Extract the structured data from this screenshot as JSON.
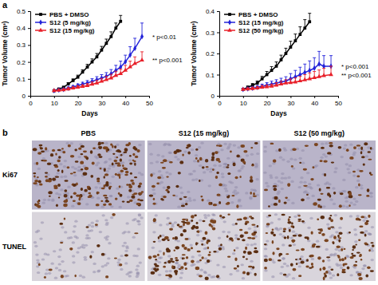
{
  "chart_data": [
    {
      "type": "line",
      "panel_label": "a",
      "x_label": "Days",
      "y_label": "Tumor Volume (cm³)",
      "xlim": [
        0,
        50
      ],
      "xticks": [
        0,
        10,
        20,
        30,
        40,
        50
      ],
      "ylim": [
        0,
        0.5
      ],
      "yticks": [
        0,
        0.1,
        0.2,
        0.3,
        0.4,
        0.5
      ],
      "legend": "upper left",
      "annotations": [
        "* p<0.01",
        "** p<0.001"
      ],
      "series": [
        {
          "name": "PBS + DMSO",
          "color": "#000000",
          "marker": "square",
          "x": [
            10,
            12,
            14,
            16,
            18,
            20,
            22,
            24,
            26,
            28,
            30,
            32,
            34,
            36,
            38
          ],
          "values": [
            0.03,
            0.04,
            0.05,
            0.07,
            0.09,
            0.11,
            0.14,
            0.17,
            0.2,
            0.23,
            0.27,
            0.31,
            0.35,
            0.4,
            0.44
          ],
          "errors": [
            0.004,
            0.005,
            0.006,
            0.008,
            0.01,
            0.012,
            0.014,
            0.016,
            0.018,
            0.02,
            0.022,
            0.025,
            0.028,
            0.03,
            0.035
          ]
        },
        {
          "name": "S12 (5 mg/kg)",
          "color": "#2323d9",
          "marker": "diamond",
          "x": [
            10,
            12,
            14,
            16,
            18,
            20,
            22,
            24,
            26,
            28,
            30,
            32,
            34,
            36,
            38,
            40,
            42,
            44,
            47
          ],
          "values": [
            0.03,
            0.034,
            0.038,
            0.045,
            0.052,
            0.06,
            0.068,
            0.076,
            0.085,
            0.095,
            0.105,
            0.115,
            0.13,
            0.15,
            0.17,
            0.2,
            0.24,
            0.28,
            0.35
          ],
          "errors": [
            0.004,
            0.005,
            0.006,
            0.007,
            0.008,
            0.01,
            0.012,
            0.014,
            0.016,
            0.018,
            0.02,
            0.022,
            0.025,
            0.03,
            0.035,
            0.04,
            0.05,
            0.06,
            0.08
          ]
        },
        {
          "name": "S12 (15 mg/kg)",
          "color": "#e8202a",
          "marker": "triangle",
          "x": [
            10,
            12,
            14,
            16,
            18,
            20,
            22,
            24,
            26,
            28,
            30,
            32,
            34,
            36,
            38,
            40,
            42,
            44,
            47
          ],
          "values": [
            0.03,
            0.032,
            0.035,
            0.04,
            0.045,
            0.05,
            0.055,
            0.06,
            0.068,
            0.075,
            0.085,
            0.095,
            0.105,
            0.12,
            0.13,
            0.15,
            0.17,
            0.19,
            0.21
          ],
          "errors": [
            0.004,
            0.005,
            0.006,
            0.007,
            0.008,
            0.009,
            0.01,
            0.012,
            0.014,
            0.016,
            0.018,
            0.02,
            0.022,
            0.025,
            0.028,
            0.03,
            0.035,
            0.04,
            0.05
          ]
        }
      ]
    },
    {
      "type": "line",
      "x_label": "Days",
      "y_label": "Tumor Volume (cm³)",
      "xlim": [
        0,
        50
      ],
      "xticks": [
        0,
        10,
        20,
        30,
        40,
        50
      ],
      "ylim": [
        0,
        0.4
      ],
      "yticks": [
        0,
        0.1,
        0.2,
        0.3,
        0.4
      ],
      "legend": "upper left",
      "annotations": [
        "* p<0.001",
        "** p<0.001"
      ],
      "series": [
        {
          "name": "PBS + DMSO",
          "color": "#000000",
          "marker": "square",
          "x": [
            10,
            12,
            14,
            16,
            18,
            20,
            22,
            24,
            26,
            28,
            30,
            32,
            34,
            36,
            38
          ],
          "values": [
            0.03,
            0.04,
            0.05,
            0.06,
            0.08,
            0.1,
            0.12,
            0.14,
            0.17,
            0.2,
            0.23,
            0.26,
            0.29,
            0.32,
            0.35
          ],
          "errors": [
            0.005,
            0.006,
            0.008,
            0.01,
            0.012,
            0.015,
            0.018,
            0.02,
            0.022,
            0.025,
            0.028,
            0.032,
            0.036,
            0.04,
            0.04
          ]
        },
        {
          "name": "S12 (15 mg/kg)",
          "color": "#2323d9",
          "marker": "diamond",
          "x": [
            10,
            12,
            14,
            16,
            18,
            20,
            22,
            24,
            26,
            28,
            30,
            32,
            34,
            36,
            38,
            40,
            42,
            44,
            47
          ],
          "values": [
            0.03,
            0.033,
            0.036,
            0.04,
            0.045,
            0.05,
            0.055,
            0.06,
            0.065,
            0.07,
            0.08,
            0.09,
            0.1,
            0.11,
            0.12,
            0.13,
            0.15,
            0.14,
            0.14
          ],
          "errors": [
            0.005,
            0.006,
            0.007,
            0.008,
            0.01,
            0.012,
            0.014,
            0.016,
            0.018,
            0.02,
            0.025,
            0.03,
            0.035,
            0.04,
            0.045,
            0.05,
            0.06,
            0.05,
            0.05
          ]
        },
        {
          "name": "S12 (50 mg/kg)",
          "color": "#e8202a",
          "marker": "triangle",
          "x": [
            10,
            12,
            14,
            16,
            18,
            20,
            22,
            24,
            26,
            28,
            30,
            32,
            34,
            36,
            38,
            40,
            42,
            44,
            47
          ],
          "values": [
            0.03,
            0.032,
            0.034,
            0.036,
            0.04,
            0.042,
            0.045,
            0.05,
            0.055,
            0.06,
            0.062,
            0.065,
            0.07,
            0.075,
            0.08,
            0.085,
            0.09,
            0.095,
            0.1
          ],
          "errors": [
            0.004,
            0.005,
            0.006,
            0.007,
            0.008,
            0.009,
            0.01,
            0.012,
            0.014,
            0.016,
            0.018,
            0.02,
            0.022,
            0.025,
            0.028,
            0.03,
            0.032,
            0.035,
            0.04
          ]
        }
      ]
    }
  ],
  "image_grid": {
    "panel_label": "b",
    "columns": [
      "PBS",
      "S12 (15 mg/kg)",
      "S12 (50 mg/kg)"
    ],
    "rows": [
      "Ki67",
      "TUNEL"
    ]
  }
}
